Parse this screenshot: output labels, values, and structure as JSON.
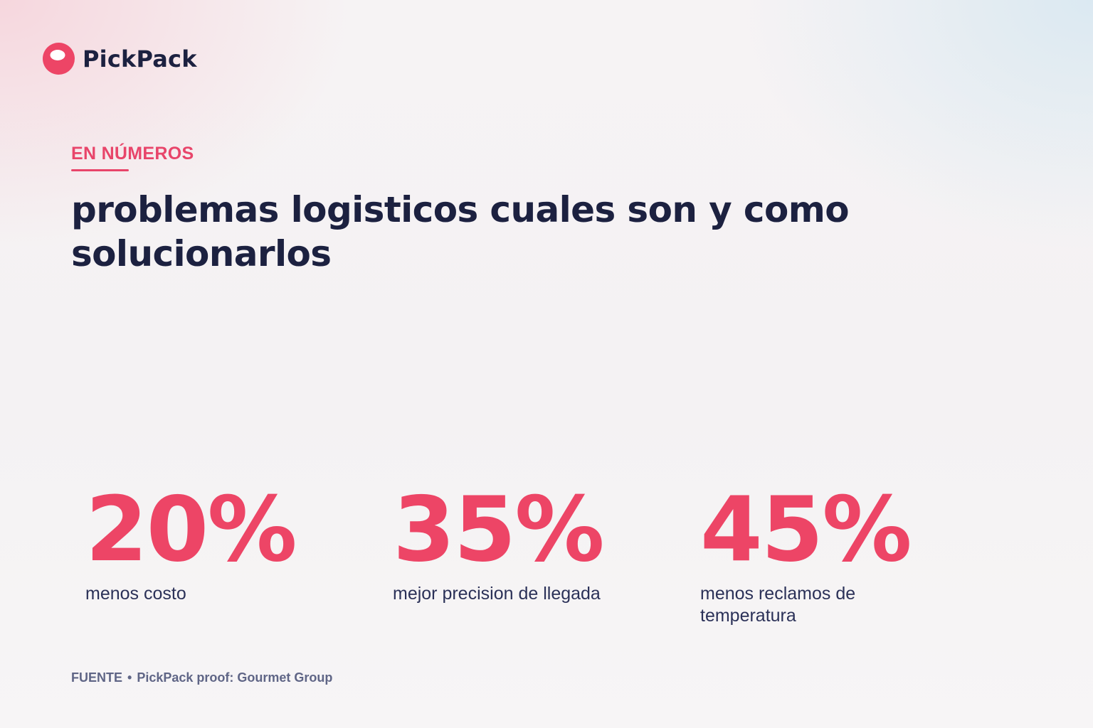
{
  "brand": {
    "name": "PickPack",
    "logo_icon": "pickpack-logo-icon",
    "accent_color": "#ed4566",
    "dark_color": "#1c2140"
  },
  "eyebrow": "EN NÚMEROS",
  "title": "problemas logisticos cuales son y como solucionarlos",
  "stats": [
    {
      "value": "20%",
      "label": "menos costo"
    },
    {
      "value": "35%",
      "label": "mejor precision de llegada"
    },
    {
      "value": "45%",
      "label": "menos reclamos de temperatura"
    }
  ],
  "source": {
    "label": "FUENTE",
    "separator": "•",
    "text": "PickPack proof: Gourmet Group"
  }
}
